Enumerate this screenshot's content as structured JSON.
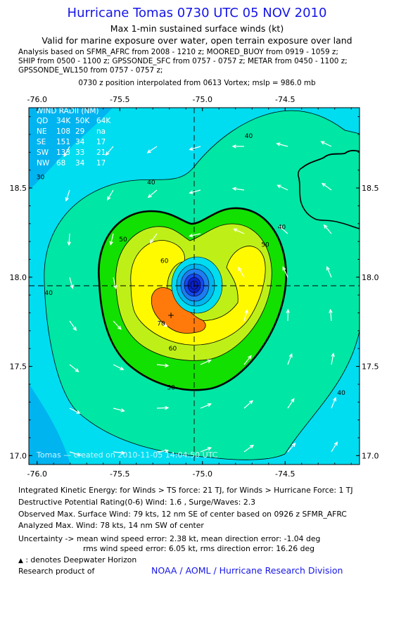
{
  "header": {
    "title": "Hurricane Tomas 0730 UTC 05 NOV 2010",
    "subtitle1": "Max 1-min sustained surface winds (kt)",
    "subtitle2": "Valid for marine exposure over water, open terrain exposure over land",
    "analysis": [
      "Analysis based on SFMR_AFRC from 2008 - 1210 z; MOORED_BUOY from 0919 - 1059 z;",
      "SHIP from 0500 - 1100 z; GPSSONDE_SFC from 0757 - 0757 z; METAR from 0450 - 1100 z;",
      "GPSSONDE_WL150 from 0757 - 0757 z;"
    ],
    "vortex_line": "0730 z position interpolated from 0613 Vortex; mslp = 986.0 mb"
  },
  "chart_data": {
    "type": "contour map",
    "x_ticks": [
      "-76.0",
      "-75.5",
      "-75.0",
      "-74.5"
    ],
    "y_ticks": [
      "18.5",
      "18.0",
      "17.5",
      "17.0"
    ],
    "xlim": [
      -76.05,
      -74.05
    ],
    "ylim": [
      16.95,
      18.95
    ],
    "center": {
      "lon": -75.05,
      "lat": 17.95
    },
    "max_wind_location": {
      "lon": -75.21,
      "lat": 17.8
    },
    "contour_labels": [
      {
        "text": "40",
        "lon": -74.72,
        "lat": 18.78
      },
      {
        "text": "40",
        "lon": -75.31,
        "lat": 18.52
      },
      {
        "text": "30",
        "lon": -75.98,
        "lat": 18.55
      },
      {
        "text": "50",
        "lon": -75.48,
        "lat": 18.2
      },
      {
        "text": "50",
        "lon": -74.62,
        "lat": 18.17
      },
      {
        "text": "60",
        "lon": -75.23,
        "lat": 18.08
      },
      {
        "text": "70",
        "lon": -75.25,
        "lat": 17.73
      },
      {
        "text": "60",
        "lon": -75.18,
        "lat": 17.59
      },
      {
        "text": "50",
        "lon": -75.19,
        "lat": 17.37
      },
      {
        "text": "40",
        "lon": -75.93,
        "lat": 17.9
      },
      {
        "text": "40",
        "lon": -74.52,
        "lat": 18.27
      },
      {
        "text": "40",
        "lon": -74.16,
        "lat": 17.34
      }
    ],
    "wind_radii_table": {
      "title": "WIND RADII (NM)",
      "header": [
        "QD",
        "34K",
        "50K",
        "64K"
      ],
      "rows": [
        [
          "NE",
          "108",
          "29",
          "na"
        ],
        [
          "SE",
          "151",
          "34",
          "17"
        ],
        [
          "SW",
          "133",
          "33",
          "21"
        ],
        [
          "NW",
          "68",
          "34",
          "17"
        ]
      ]
    },
    "created": "Tomas — created on 2010-11-05 14:04:50 UTC",
    "colors": {
      "30kt": "#00b4f0",
      "30-40kt": "#00dcf0",
      "40-50kt": "#00e6a4",
      "50-60kt": "#12e000",
      "60-70kt": "#bef018",
      "70-80kt": "#fffa00",
      "max": "#ff7a0a",
      "eye": "#1448f0",
      "eye_inner": "#0a20c8"
    }
  },
  "footer": {
    "ike": "Integrated Kinetic Energy:  for Winds > TS force: 21 TJ,  for Winds > Hurricane Force: 1 TJ",
    "dpr": "Destructive Potential Rating(0-6)   Wind: 1.6 , Surge/Waves: 2.3",
    "obs_max": "Observed Max. Surface Wind: 79 kts, 12 nm SE of center based on 0926 z SFMR_AFRC",
    "an_max": "Analyzed Max. Wind: 78 kts, 14 nm SW of center",
    "unc1": "Uncertainty -> mean wind speed error: 2.38 kt,   mean direction error:  -1.04 deg",
    "unc2": "rms wind speed error: 6.05 kt,   rms direction error: 16.26 deg",
    "dwh": ": denotes Deepwater Horizon",
    "research": "Research product of",
    "org": "NOAA / AOML / Hurricane Research Division"
  }
}
